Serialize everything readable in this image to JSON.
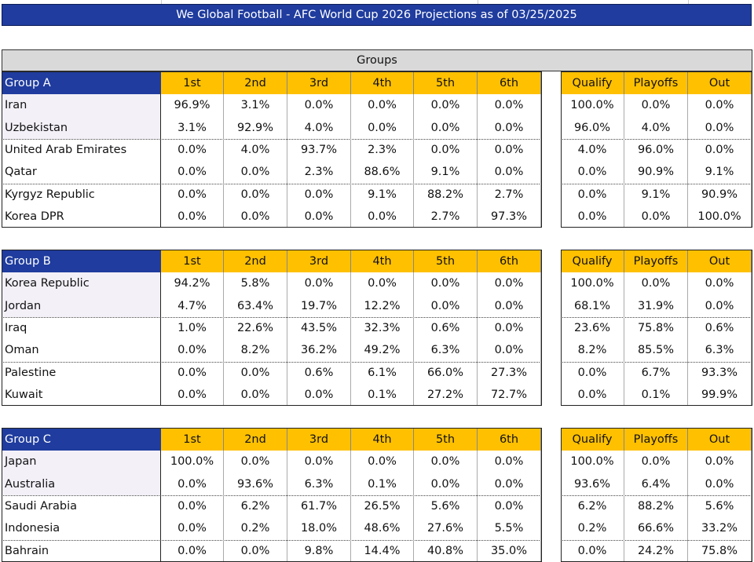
{
  "title": "We Global Football - AFC World Cup 2026 Projections as of 03/25/2025",
  "section_header": "Groups",
  "groups": [
    {
      "name": "Group A",
      "columns": [
        "1st",
        "2nd",
        "3rd",
        "4th",
        "5th",
        "6th"
      ],
      "outcome_columns": [
        "Qualify",
        "Playoffs",
        "Out"
      ],
      "rows": [
        {
          "team": "Iran",
          "positions": [
            "96.9%",
            "3.1%",
            "0.0%",
            "0.0%",
            "0.0%",
            "0.0%"
          ],
          "outcomes": [
            "100.0%",
            "0.0%",
            "0.0%"
          ]
        },
        {
          "team": "Uzbekistan",
          "positions": [
            "3.1%",
            "92.9%",
            "4.0%",
            "0.0%",
            "0.0%",
            "0.0%"
          ],
          "outcomes": [
            "96.0%",
            "4.0%",
            "0.0%"
          ]
        },
        {
          "team": "United Arab Emirates",
          "positions": [
            "0.0%",
            "4.0%",
            "93.7%",
            "2.3%",
            "0.0%",
            "0.0%"
          ],
          "outcomes": [
            "4.0%",
            "96.0%",
            "0.0%"
          ]
        },
        {
          "team": "Qatar",
          "positions": [
            "0.0%",
            "0.0%",
            "2.3%",
            "88.6%",
            "9.1%",
            "0.0%"
          ],
          "outcomes": [
            "0.0%",
            "90.9%",
            "9.1%"
          ]
        },
        {
          "team": "Kyrgyz Republic",
          "positions": [
            "0.0%",
            "0.0%",
            "0.0%",
            "9.1%",
            "88.2%",
            "2.7%"
          ],
          "outcomes": [
            "0.0%",
            "9.1%",
            "90.9%"
          ]
        },
        {
          "team": "Korea DPR",
          "positions": [
            "0.0%",
            "0.0%",
            "0.0%",
            "0.0%",
            "2.7%",
            "97.3%"
          ],
          "outcomes": [
            "0.0%",
            "0.0%",
            "100.0%"
          ]
        }
      ]
    },
    {
      "name": "Group B",
      "columns": [
        "1st",
        "2nd",
        "3rd",
        "4th",
        "5th",
        "6th"
      ],
      "outcome_columns": [
        "Qualify",
        "Playoffs",
        "Out"
      ],
      "rows": [
        {
          "team": "Korea Republic",
          "positions": [
            "94.2%",
            "5.8%",
            "0.0%",
            "0.0%",
            "0.0%",
            "0.0%"
          ],
          "outcomes": [
            "100.0%",
            "0.0%",
            "0.0%"
          ]
        },
        {
          "team": "Jordan",
          "positions": [
            "4.7%",
            "63.4%",
            "19.7%",
            "12.2%",
            "0.0%",
            "0.0%"
          ],
          "outcomes": [
            "68.1%",
            "31.9%",
            "0.0%"
          ]
        },
        {
          "team": "Iraq",
          "positions": [
            "1.0%",
            "22.6%",
            "43.5%",
            "32.3%",
            "0.6%",
            "0.0%"
          ],
          "outcomes": [
            "23.6%",
            "75.8%",
            "0.6%"
          ]
        },
        {
          "team": "Oman",
          "positions": [
            "0.0%",
            "8.2%",
            "36.2%",
            "49.2%",
            "6.3%",
            "0.0%"
          ],
          "outcomes": [
            "8.2%",
            "85.5%",
            "6.3%"
          ]
        },
        {
          "team": "Palestine",
          "positions": [
            "0.0%",
            "0.0%",
            "0.6%",
            "6.1%",
            "66.0%",
            "27.3%"
          ],
          "outcomes": [
            "0.0%",
            "6.7%",
            "93.3%"
          ]
        },
        {
          "team": "Kuwait",
          "positions": [
            "0.0%",
            "0.0%",
            "0.0%",
            "0.1%",
            "27.2%",
            "72.7%"
          ],
          "outcomes": [
            "0.0%",
            "0.1%",
            "99.9%"
          ]
        }
      ]
    },
    {
      "name": "Group C",
      "columns": [
        "1st",
        "2nd",
        "3rd",
        "4th",
        "5th",
        "6th"
      ],
      "outcome_columns": [
        "Qualify",
        "Playoffs",
        "Out"
      ],
      "rows": [
        {
          "team": "Japan",
          "positions": [
            "100.0%",
            "0.0%",
            "0.0%",
            "0.0%",
            "0.0%",
            "0.0%"
          ],
          "outcomes": [
            "100.0%",
            "0.0%",
            "0.0%"
          ]
        },
        {
          "team": "Australia",
          "positions": [
            "0.0%",
            "93.6%",
            "6.3%",
            "0.1%",
            "0.0%",
            "0.0%"
          ],
          "outcomes": [
            "93.6%",
            "6.4%",
            "0.0%"
          ]
        },
        {
          "team": "Saudi Arabia",
          "positions": [
            "0.0%",
            "6.2%",
            "61.7%",
            "26.5%",
            "5.6%",
            "0.0%"
          ],
          "outcomes": [
            "6.2%",
            "88.2%",
            "5.6%"
          ]
        },
        {
          "team": "Indonesia",
          "positions": [
            "0.0%",
            "0.2%",
            "18.0%",
            "48.6%",
            "27.6%",
            "5.5%"
          ],
          "outcomes": [
            "0.2%",
            "66.6%",
            "33.2%"
          ]
        },
        {
          "team": "Bahrain",
          "positions": [
            "0.0%",
            "0.0%",
            "9.8%",
            "14.4%",
            "40.8%",
            "35.0%"
          ],
          "outcomes": [
            "0.0%",
            "24.2%",
            "75.8%"
          ]
        }
      ]
    }
  ]
}
